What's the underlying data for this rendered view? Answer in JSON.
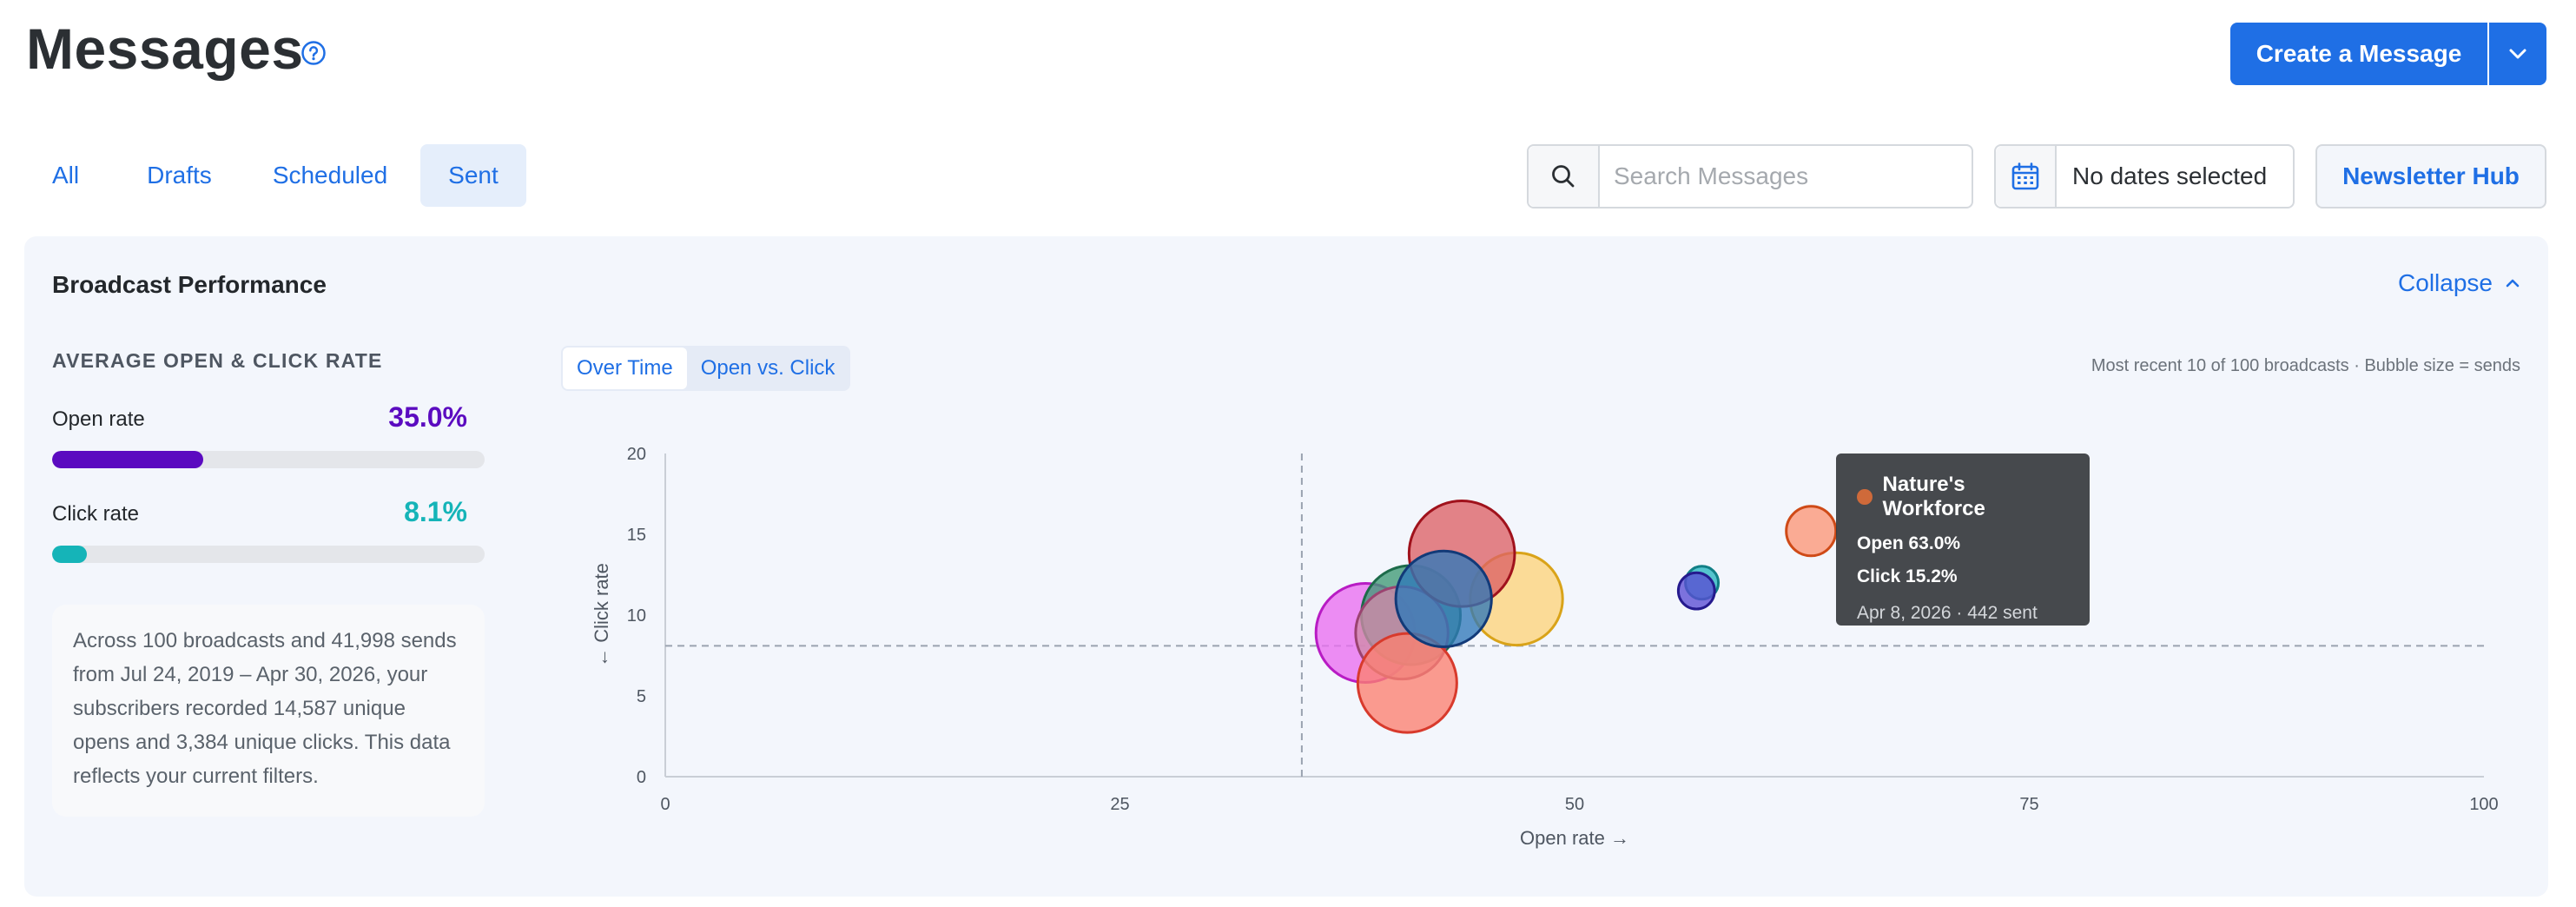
{
  "header": {
    "title": "Messages",
    "create_label": "Create a Message"
  },
  "tabs": [
    {
      "label": "All",
      "active": false
    },
    {
      "label": "Drafts",
      "active": false
    },
    {
      "label": "Scheduled",
      "active": false
    },
    {
      "label": "Sent",
      "active": true
    }
  ],
  "search": {
    "placeholder": "Search Messages",
    "value": ""
  },
  "date_filter": {
    "label": "No dates selected"
  },
  "hub_label": "Newsletter Hub",
  "panel": {
    "title": "Broadcast Performance",
    "collapse_label": "Collapse",
    "avg_heading": "AVERAGE OPEN & CLICK RATE",
    "open_label": "Open rate",
    "open_value": "35.0%",
    "open_fraction": 0.35,
    "click_label": "Click rate",
    "click_value": "8.1%",
    "click_fraction": 0.081,
    "summary": "Across 100 broadcasts and 41,998 sends from Jul 24, 2019 – Apr 30, 2026, your subscribers recorded 14,587 unique opens and 3,384 unique clicks. This data reflects your current filters.",
    "toggle": [
      {
        "label": "Over Time",
        "active": true
      },
      {
        "label": "Open vs. Click",
        "active": false
      }
    ],
    "note": "Most recent 10 of 100 broadcasts · Bubble size = sends"
  },
  "colors": {
    "accent": "#1f6fe5",
    "open": "#5b0bc0",
    "click": "#15b4b8"
  },
  "chart_data": {
    "type": "scatter",
    "xlabel": "Open rate →",
    "ylabel": "← Click rate",
    "xlim": [
      0,
      100
    ],
    "ylim": [
      0,
      20
    ],
    "xticks": [
      0,
      25,
      50,
      75,
      100
    ],
    "yticks": [
      0,
      5,
      10,
      15,
      20
    ],
    "x_ref": 35.0,
    "y_ref": 8.1,
    "points": [
      {
        "x": 38.5,
        "y": 8.9,
        "r": 30,
        "fill": "#e96ef0",
        "stroke": "#b81cc4"
      },
      {
        "x": 41,
        "y": 10.0,
        "r": 30,
        "fill": "#3f9a74",
        "stroke": "#1d6b4a"
      },
      {
        "x": 40.5,
        "y": 8.9,
        "r": 28,
        "fill": "#d08aa8",
        "stroke": "#9b4370"
      },
      {
        "x": 40.8,
        "y": 5.8,
        "r": 30,
        "fill": "#fb8070",
        "stroke": "#d83a2c"
      },
      {
        "x": 46.8,
        "y": 11.0,
        "r": 28,
        "fill": "#fcd37a",
        "stroke": "#d9a319"
      },
      {
        "x": 43.8,
        "y": 13.8,
        "r": 32,
        "fill": "#dd6265",
        "stroke": "#a0121c"
      },
      {
        "x": 42.8,
        "y": 11.0,
        "r": 29,
        "fill": "#2f78b8",
        "stroke": "#123a78"
      },
      {
        "x": 57,
        "y": 12.0,
        "r": 10,
        "fill": "#26b6c0",
        "stroke": "#117f86"
      },
      {
        "x": 56.7,
        "y": 11.5,
        "r": 11,
        "fill": "#5a4dd4",
        "stroke": "#251a8e"
      },
      {
        "x": 63.0,
        "y": 15.2,
        "r": 15,
        "fill": "#fb9676",
        "stroke": "#cf4a17"
      }
    ],
    "tooltip": {
      "title": "Nature's Workforce",
      "color": "#cf6a3a",
      "open": "Open 63.0%",
      "click": "Click 15.2%",
      "meta": "Apr 8, 2026 · 442 sent"
    }
  }
}
